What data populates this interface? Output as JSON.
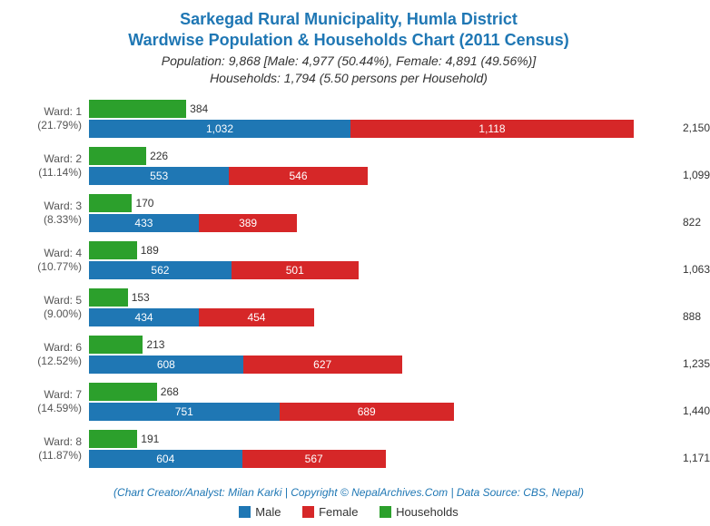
{
  "title_line1": "Sarkegad Rural Municipality, Humla District",
  "title_line2": "Wardwise Population & Households Chart (2011 Census)",
  "subtitle_line1": "Population: 9,868 [Male: 4,977 (50.44%), Female: 4,891 (49.56%)]",
  "subtitle_line2": "Households: 1,794 (5.50 persons per Household)",
  "credit": "(Chart Creator/Analyst: Milan Karki | Copyright © NepalArchives.Com | Data Source: CBS, Nepal)",
  "colors": {
    "male": "#1f77b4",
    "female": "#d62728",
    "households": "#2ca02c",
    "title": "#1f77b4",
    "text": "#333333",
    "ward_label": "#555555",
    "background": "#ffffff"
  },
  "legend": {
    "male": "Male",
    "female": "Female",
    "households": "Households"
  },
  "chart": {
    "max_population": 2150,
    "wards": [
      {
        "ward": "Ward: 1",
        "pct": "(21.79%)",
        "households": 384,
        "male": 1032,
        "male_label": "1,032",
        "female": 1118,
        "female_label": "1,118",
        "total": 2150,
        "total_label": "2,150"
      },
      {
        "ward": "Ward: 2",
        "pct": "(11.14%)",
        "households": 226,
        "male": 553,
        "male_label": "553",
        "female": 546,
        "female_label": "546",
        "total": 1099,
        "total_label": "1,099"
      },
      {
        "ward": "Ward: 3",
        "pct": "(8.33%)",
        "households": 170,
        "male": 433,
        "male_label": "433",
        "female": 389,
        "female_label": "389",
        "total": 822,
        "total_label": "822"
      },
      {
        "ward": "Ward: 4",
        "pct": "(10.77%)",
        "households": 189,
        "male": 562,
        "male_label": "562",
        "female": 501,
        "female_label": "501",
        "total": 1063,
        "total_label": "1,063"
      },
      {
        "ward": "Ward: 5",
        "pct": "(9.00%)",
        "households": 153,
        "male": 434,
        "male_label": "434",
        "female": 454,
        "female_label": "454",
        "total": 888,
        "total_label": "888"
      },
      {
        "ward": "Ward: 6",
        "pct": "(12.52%)",
        "households": 213,
        "male": 608,
        "male_label": "608",
        "female": 627,
        "female_label": "627",
        "total": 1235,
        "total_label": "1,235"
      },
      {
        "ward": "Ward: 7",
        "pct": "(14.59%)",
        "households": 268,
        "male": 751,
        "male_label": "751",
        "female": 689,
        "female_label": "689",
        "total": 1440,
        "total_label": "1,440"
      },
      {
        "ward": "Ward: 8",
        "pct": "(11.87%)",
        "households": 191,
        "male": 604,
        "male_label": "604",
        "female": 567,
        "female_label": "567",
        "total": 1171,
        "total_label": "1,171"
      }
    ]
  }
}
